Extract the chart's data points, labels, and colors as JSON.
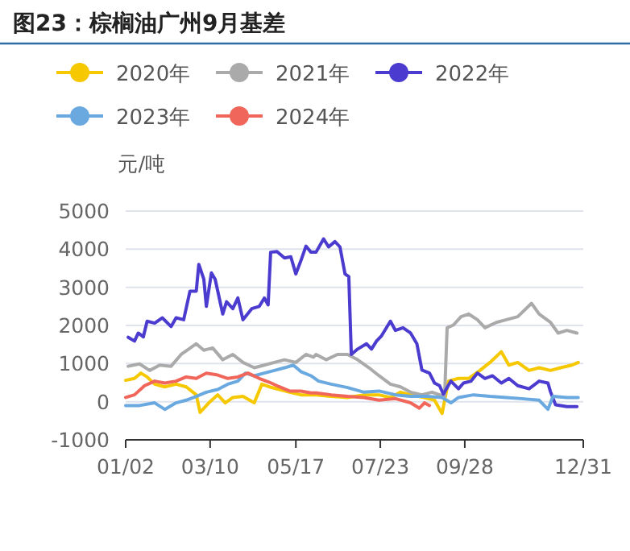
{
  "chart_data": {
    "type": "line",
    "title": "图23：棕榈油广州9月基差",
    "ylabel": "元/吨",
    "legend": "top",
    "grid": "y",
    "ylim": [
      -1000,
      5000
    ],
    "yticks": [
      -1000,
      0,
      1000,
      2000,
      3000,
      4000,
      5000
    ],
    "xlim": [
      "--01-02",
      "--12-31"
    ],
    "xticks": [
      {
        "value": "--01-02",
        "label": "01/02"
      },
      {
        "value": "--03-10",
        "label": "03/10"
      },
      {
        "value": "--05-17",
        "label": "05/17"
      },
      {
        "value": "--07-23",
        "label": "07/23"
      },
      {
        "value": "--09-28",
        "label": "09/28"
      },
      {
        "value": "--12-31",
        "label": "12/31"
      }
    ],
    "series": [
      {
        "name": "2020年",
        "color": "#f5c800",
        "x": [
          "--01-02",
          "--01-09",
          "--01-14",
          "--01-19",
          "--01-25",
          "--02-02",
          "--02-11",
          "--02-19",
          "--02-27",
          "--03-02",
          "--03-09",
          "--03-16",
          "--03-22",
          "--03-28",
          "--04-05",
          "--04-14",
          "--04-20",
          "--04-26",
          "--05-04",
          "--05-12",
          "--05-21",
          "--05-29",
          "--06-02",
          "--06-14",
          "--06-27",
          "--07-10",
          "--07-22",
          "--07-31",
          "--08-08",
          "--08-16",
          "--08-27",
          "--09-04",
          "--09-10",
          "--09-15",
          "--09-23",
          "--10-01",
          "--10-10",
          "--10-18",
          "--10-27",
          "--11-02",
          "--11-09",
          "--11-18",
          "--11-26",
          "--12-05",
          "--12-13",
          "--12-22",
          "--12-27"
        ],
        "values": [
          560,
          610,
          750,
          650,
          460,
          390,
          460,
          390,
          180,
          -280,
          -30,
          180,
          -30,
          110,
          140,
          -30,
          460,
          390,
          320,
          250,
          180,
          180,
          180,
          140,
          110,
          180,
          180,
          110,
          250,
          180,
          110,
          40,
          -310,
          540,
          610,
          610,
          820,
          1030,
          1310,
          960,
          1030,
          820,
          890,
          820,
          890,
          960,
          1030
        ]
      },
      {
        "name": "2021年",
        "color": "#aaaaaa",
        "x": [
          "--01-04",
          "--01-13",
          "--01-21",
          "--01-29",
          "--02-07",
          "--02-15",
          "--02-21",
          "--02-27",
          "--03-05",
          "--03-12",
          "--03-20",
          "--03-28",
          "--04-05",
          "--04-14",
          "--04-22",
          "--04-30",
          "--05-08",
          "--05-17",
          "--05-25",
          "--05-31",
          "--06-02",
          "--06-10",
          "--06-19",
          "--06-27",
          "--07-05",
          "--07-14",
          "--07-22",
          "--07-31",
          "--08-08",
          "--08-16",
          "--08-25",
          "--09-02",
          "--09-08",
          "--09-12",
          "--09-14",
          "--09-19",
          "--09-25",
          "--10-01",
          "--10-08",
          "--10-14",
          "--10-23",
          "--10-31",
          "--11-09",
          "--11-20",
          "--11-26",
          "--12-05",
          "--12-11",
          "--12-18",
          "--12-26"
        ],
        "values": [
          930,
          990,
          820,
          960,
          930,
          1240,
          1380,
          1520,
          1350,
          1410,
          1100,
          1240,
          1030,
          890,
          960,
          1030,
          1100,
          1030,
          1240,
          1170,
          1240,
          1100,
          1240,
          1240,
          1100,
          890,
          680,
          460,
          390,
          250,
          180,
          250,
          180,
          140,
          1940,
          2010,
          2230,
          2300,
          2150,
          1940,
          2080,
          2150,
          2230,
          2580,
          2300,
          2080,
          1800,
          1870,
          1800
        ]
      },
      {
        "name": "2022年",
        "color": "#4b3bcf",
        "x": [
          "--01-04",
          "--01-09",
          "--01-12",
          "--01-16",
          "--01-19",
          "--01-25",
          "--01-31",
          "--02-07",
          "--02-11",
          "--02-17",
          "--02-22",
          "--02-27",
          "--03-01",
          "--03-05",
          "--03-07",
          "--03-11",
          "--03-14",
          "--03-20",
          "--03-23",
          "--03-28",
          "--04-01",
          "--04-05",
          "--04-12",
          "--04-18",
          "--04-22",
          "--04-25",
          "--04-27",
          "--05-02",
          "--05-08",
          "--05-13",
          "--05-17",
          "--05-21",
          "--05-25",
          "--05-29",
          "--06-02",
          "--06-08",
          "--06-12",
          "--06-17",
          "--06-21",
          "--06-25",
          "--06-28",
          "--06-30",
          "--07-05",
          "--07-12",
          "--07-16",
          "--07-20",
          "--07-24",
          "--07-31",
          "--08-04",
          "--08-10",
          "--08-16",
          "--08-21",
          "--08-25",
          "--08-31",
          "--09-04",
          "--09-08",
          "--09-11",
          "--09-17",
          "--09-23",
          "--09-27",
          "--10-03",
          "--10-08",
          "--10-14",
          "--10-20",
          "--10-27",
          "--11-02",
          "--11-09",
          "--11-18",
          "--11-26",
          "--12-03",
          "--12-05",
          "--12-09",
          "--12-18",
          "--12-26"
        ],
        "values": [
          1690,
          1590,
          1800,
          1700,
          2110,
          2060,
          2200,
          1970,
          2200,
          2150,
          2900,
          2900,
          3600,
          3210,
          2500,
          3380,
          3210,
          2300,
          2620,
          2440,
          2720,
          2150,
          2440,
          2500,
          2720,
          2540,
          3920,
          3940,
          3770,
          3800,
          3350,
          3700,
          4080,
          3920,
          3920,
          4270,
          4060,
          4200,
          4060,
          3350,
          3280,
          1240,
          1380,
          1520,
          1380,
          1590,
          1730,
          2110,
          1870,
          1940,
          1800,
          1520,
          830,
          750,
          490,
          420,
          200,
          540,
          340,
          490,
          540,
          750,
          610,
          680,
          490,
          610,
          420,
          340,
          540,
          490,
          260,
          -80,
          -130,
          -130
        ]
      },
      {
        "name": "2023年",
        "color": "#6aa8e0",
        "x": [
          "--01-02",
          "--01-13",
          "--01-25",
          "--02-02",
          "--02-11",
          "--02-19",
          "--02-27",
          "--03-07",
          "--03-16",
          "--03-24",
          "--04-01",
          "--04-07",
          "--04-14",
          "--04-22",
          "--04-30",
          "--05-08",
          "--05-15",
          "--05-21",
          "--05-29",
          "--06-04",
          "--06-14",
          "--06-27",
          "--07-10",
          "--07-22",
          "--08-04",
          "--08-16",
          "--08-29",
          "--09-10",
          "--09-17",
          "--09-23",
          "--10-05",
          "--10-18",
          "--10-31",
          "--11-12",
          "--11-26",
          "--12-03",
          "--12-07",
          "--12-18",
          "--12-27"
        ],
        "values": [
          -100,
          -100,
          -30,
          -200,
          -30,
          40,
          140,
          250,
          320,
          460,
          540,
          750,
          680,
          750,
          820,
          890,
          960,
          790,
          680,
          540,
          460,
          370,
          250,
          280,
          180,
          140,
          140,
          110,
          -30,
          110,
          180,
          140,
          110,
          80,
          40,
          -200,
          140,
          110,
          110
        ]
      },
      {
        "name": "2024年",
        "color": "#f0665a",
        "x": [
          "--01-02",
          "--01-09",
          "--01-17",
          "--01-25",
          "--02-02",
          "--02-11",
          "--02-19",
          "--02-27",
          "--03-07",
          "--03-16",
          "--03-24",
          "--04-01",
          "--04-09",
          "--04-18",
          "--04-26",
          "--05-04",
          "--05-12",
          "--05-21",
          "--05-29",
          "--06-02",
          "--06-14",
          "--06-27",
          "--07-10",
          "--07-22",
          "--08-04",
          "--08-16",
          "--08-23",
          "--08-27",
          "--08-31"
        ],
        "values": [
          110,
          180,
          420,
          540,
          490,
          540,
          650,
          610,
          750,
          700,
          610,
          650,
          750,
          610,
          510,
          390,
          280,
          280,
          230,
          230,
          180,
          140,
          110,
          40,
          80,
          -30,
          -170,
          -30,
          -100
        ]
      }
    ]
  }
}
